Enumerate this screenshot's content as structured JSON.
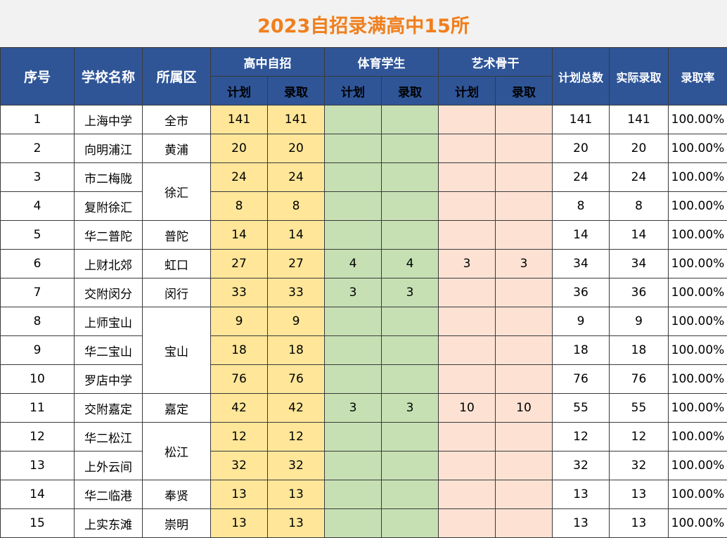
{
  "title": "2023自招录满高中15所",
  "headers": {
    "index": "序号",
    "school": "学校名称",
    "district": "所属区",
    "group_self": "高中自招",
    "group_sports": "体育学生",
    "group_arts": "艺术骨干",
    "plan": "计划",
    "admit": "录取",
    "total_plan": "计划总数",
    "actual_admit": "实际录取",
    "rate": "录取率"
  },
  "rows": [
    {
      "idx": "1",
      "school": "上海中学",
      "district": "全市",
      "self_plan": "141",
      "self_admit": "141",
      "sp_plan": "",
      "sp_admit": "",
      "art_plan": "",
      "art_admit": "",
      "total": "141",
      "actual": "141",
      "rate": "100.00%"
    },
    {
      "idx": "2",
      "school": "向明浦江",
      "district": "黄浦",
      "self_plan": "20",
      "self_admit": "20",
      "sp_plan": "",
      "sp_admit": "",
      "art_plan": "",
      "art_admit": "",
      "total": "20",
      "actual": "20",
      "rate": "100.00%"
    },
    {
      "idx": "3",
      "school": "市二梅陇",
      "district": "徐汇",
      "self_plan": "24",
      "self_admit": "24",
      "sp_plan": "",
      "sp_admit": "",
      "art_plan": "",
      "art_admit": "",
      "total": "24",
      "actual": "24",
      "rate": "100.00%"
    },
    {
      "idx": "4",
      "school": "复附徐汇",
      "district": "",
      "self_plan": "8",
      "self_admit": "8",
      "sp_plan": "",
      "sp_admit": "",
      "art_plan": "",
      "art_admit": "",
      "total": "8",
      "actual": "8",
      "rate": "100.00%"
    },
    {
      "idx": "5",
      "school": "华二普陀",
      "district": "普陀",
      "self_plan": "14",
      "self_admit": "14",
      "sp_plan": "",
      "sp_admit": "",
      "art_plan": "",
      "art_admit": "",
      "total": "14",
      "actual": "14",
      "rate": "100.00%"
    },
    {
      "idx": "6",
      "school": "上财北郊",
      "district": "虹口",
      "self_plan": "27",
      "self_admit": "27",
      "sp_plan": "4",
      "sp_admit": "4",
      "art_plan": "3",
      "art_admit": "3",
      "total": "34",
      "actual": "34",
      "rate": "100.00%"
    },
    {
      "idx": "7",
      "school": "交附闵分",
      "district": "闵行",
      "self_plan": "33",
      "self_admit": "33",
      "sp_plan": "3",
      "sp_admit": "3",
      "art_plan": "",
      "art_admit": "",
      "total": "36",
      "actual": "36",
      "rate": "100.00%"
    },
    {
      "idx": "8",
      "school": "上师宝山",
      "district": "宝山",
      "self_plan": "9",
      "self_admit": "9",
      "sp_plan": "",
      "sp_admit": "",
      "art_plan": "",
      "art_admit": "",
      "total": "9",
      "actual": "9",
      "rate": "100.00%"
    },
    {
      "idx": "9",
      "school": "华二宝山",
      "district": "",
      "self_plan": "18",
      "self_admit": "18",
      "sp_plan": "",
      "sp_admit": "",
      "art_plan": "",
      "art_admit": "",
      "total": "18",
      "actual": "18",
      "rate": "100.00%"
    },
    {
      "idx": "10",
      "school": "罗店中学",
      "district": "",
      "self_plan": "76",
      "self_admit": "76",
      "sp_plan": "",
      "sp_admit": "",
      "art_plan": "",
      "art_admit": "",
      "total": "76",
      "actual": "76",
      "rate": "100.00%"
    },
    {
      "idx": "11",
      "school": "交附嘉定",
      "district": "嘉定",
      "self_plan": "42",
      "self_admit": "42",
      "sp_plan": "3",
      "sp_admit": "3",
      "art_plan": "10",
      "art_admit": "10",
      "total": "55",
      "actual": "55",
      "rate": "100.00%"
    },
    {
      "idx": "12",
      "school": "华二松江",
      "district": "松江",
      "self_plan": "12",
      "self_admit": "12",
      "sp_plan": "",
      "sp_admit": "",
      "art_plan": "",
      "art_admit": "",
      "total": "12",
      "actual": "12",
      "rate": "100.00%"
    },
    {
      "idx": "13",
      "school": "上外云间",
      "district": "",
      "self_plan": "32",
      "self_admit": "32",
      "sp_plan": "",
      "sp_admit": "",
      "art_plan": "",
      "art_admit": "",
      "total": "32",
      "actual": "32",
      "rate": "100.00%"
    },
    {
      "idx": "14",
      "school": "华二临港",
      "district": "奉贤",
      "self_plan": "13",
      "self_admit": "13",
      "sp_plan": "",
      "sp_admit": "",
      "art_plan": "",
      "art_admit": "",
      "total": "13",
      "actual": "13",
      "rate": "100.00%"
    },
    {
      "idx": "15",
      "school": "上实东滩",
      "district": "崇明",
      "self_plan": "13",
      "self_admit": "13",
      "sp_plan": "",
      "sp_admit": "",
      "art_plan": "",
      "art_admit": "",
      "total": "13",
      "actual": "13",
      "rate": "100.00%"
    }
  ]
}
